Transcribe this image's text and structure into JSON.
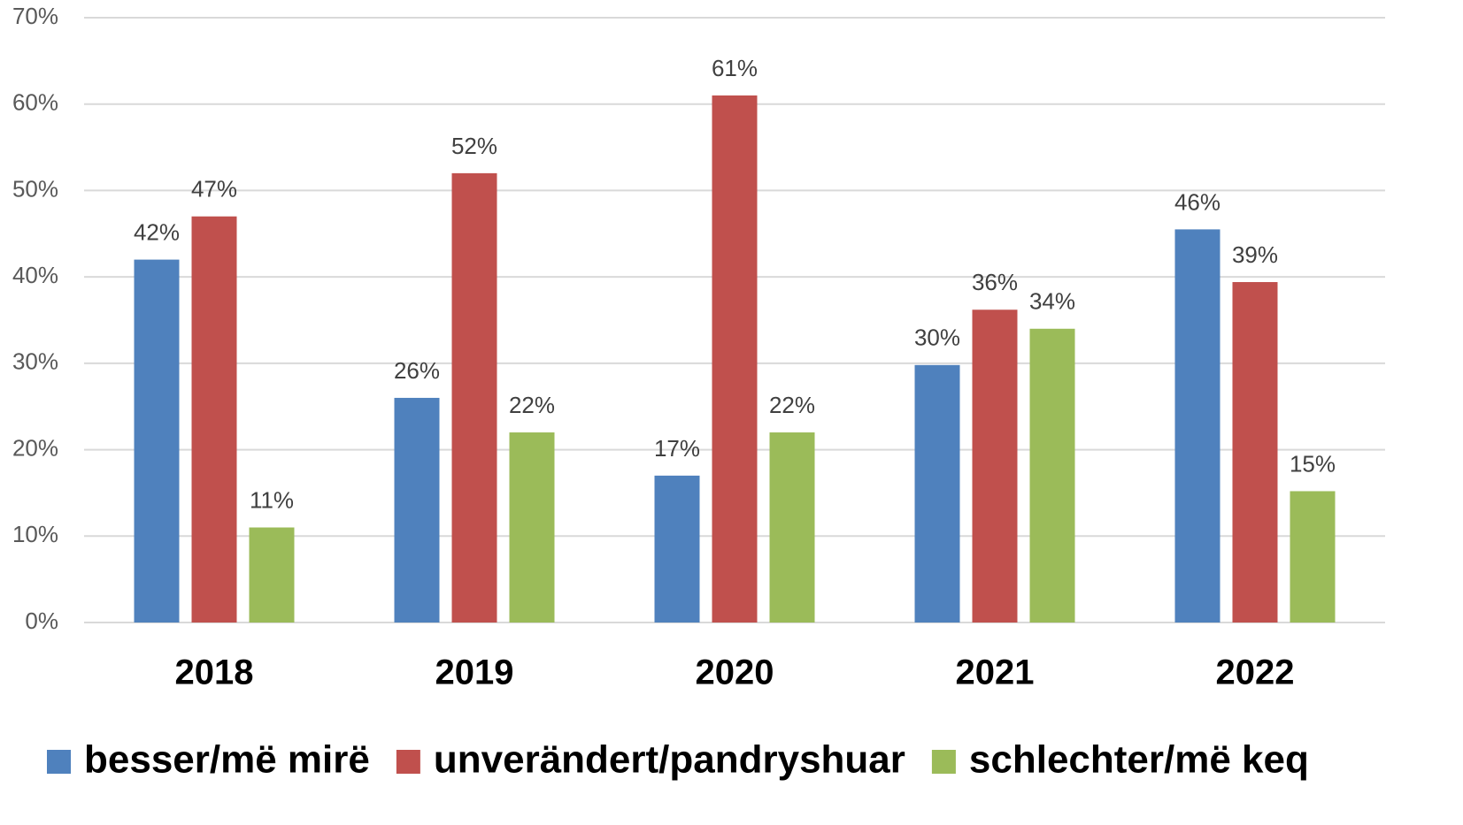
{
  "chart_data": {
    "type": "bar",
    "categories": [
      "2018",
      "2019",
      "2020",
      "2021",
      "2022"
    ],
    "series": [
      {
        "name": "besser/më mirë",
        "color": "#4f81bd",
        "values": [
          42,
          26,
          17,
          29.8,
          45.5
        ],
        "value_labels": [
          "42%",
          "26%",
          "17%",
          "30%",
          "46%"
        ]
      },
      {
        "name": "unverändert/pandryshuar",
        "color": "#c0504d",
        "values": [
          47,
          52,
          61,
          36.2,
          39.4
        ],
        "value_labels": [
          "47%",
          "52%",
          "61%",
          "36%",
          "39%"
        ]
      },
      {
        "name": "schlechter/më keq",
        "color": "#9bbb59",
        "values": [
          11,
          22,
          22,
          34,
          15.2
        ],
        "value_labels": [
          "11%",
          "22%",
          "22%",
          "34%",
          "15%"
        ]
      }
    ],
    "ylim": [
      0,
      70
    ],
    "yticks": [
      {
        "value": 0,
        "label": "0%"
      },
      {
        "value": 10,
        "label": "10%"
      },
      {
        "value": 20,
        "label": "20%"
      },
      {
        "value": 30,
        "label": "30%"
      },
      {
        "value": 40,
        "label": "40%"
      },
      {
        "value": 50,
        "label": "50%"
      },
      {
        "value": 60,
        "label": "60%"
      },
      {
        "value": 70,
        "label": "70%"
      }
    ],
    "grid": true,
    "legend": "bottom"
  }
}
